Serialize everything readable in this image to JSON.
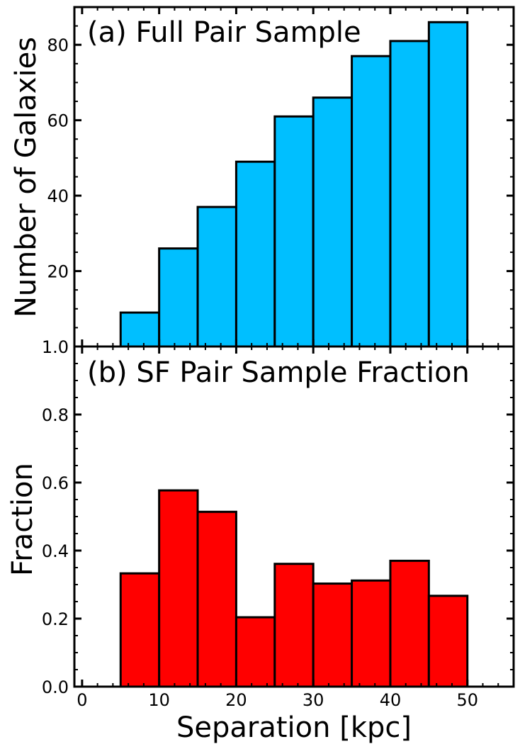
{
  "chart_data": [
    {
      "type": "bar",
      "panel": "a",
      "title": "(a) Full Pair Sample",
      "ylabel": "Number of Galaxies",
      "xlabel": "",
      "color": "#00BFFF",
      "bin_edges": [
        5,
        10,
        15,
        20,
        25,
        30,
        35,
        40,
        45,
        50
      ],
      "values": [
        9,
        26,
        37,
        49,
        61,
        66,
        77,
        81,
        86
      ],
      "xlim": [
        -1,
        56
      ],
      "ylim": [
        0,
        90
      ],
      "yticks": [
        20,
        40,
        60,
        80
      ],
      "ytick_labels": [
        "20",
        "40",
        "60",
        "80"
      ],
      "y_bottom_label": "1.0",
      "grid": false
    },
    {
      "type": "bar",
      "panel": "b",
      "title": "(b) SF Pair Sample Fraction",
      "ylabel": "Fraction",
      "xlabel": "Separation [kpc]",
      "color": "#FF0000",
      "bin_edges": [
        5,
        10,
        15,
        20,
        25,
        30,
        35,
        40,
        45,
        50
      ],
      "values": [
        0.333,
        0.577,
        0.514,
        0.204,
        0.361,
        0.303,
        0.312,
        0.37,
        0.267
      ],
      "xlim": [
        -1,
        56
      ],
      "ylim": [
        0,
        1
      ],
      "xticks": [
        0,
        10,
        20,
        30,
        40,
        50
      ],
      "xtick_labels": [
        "0",
        "10",
        "20",
        "30",
        "40",
        "50"
      ],
      "yticks": [
        0,
        0.2,
        0.4,
        0.6,
        0.8
      ],
      "ytick_labels": [
        "0.0",
        "0.2",
        "0.4",
        "0.6",
        "0.8"
      ],
      "grid": false
    }
  ]
}
